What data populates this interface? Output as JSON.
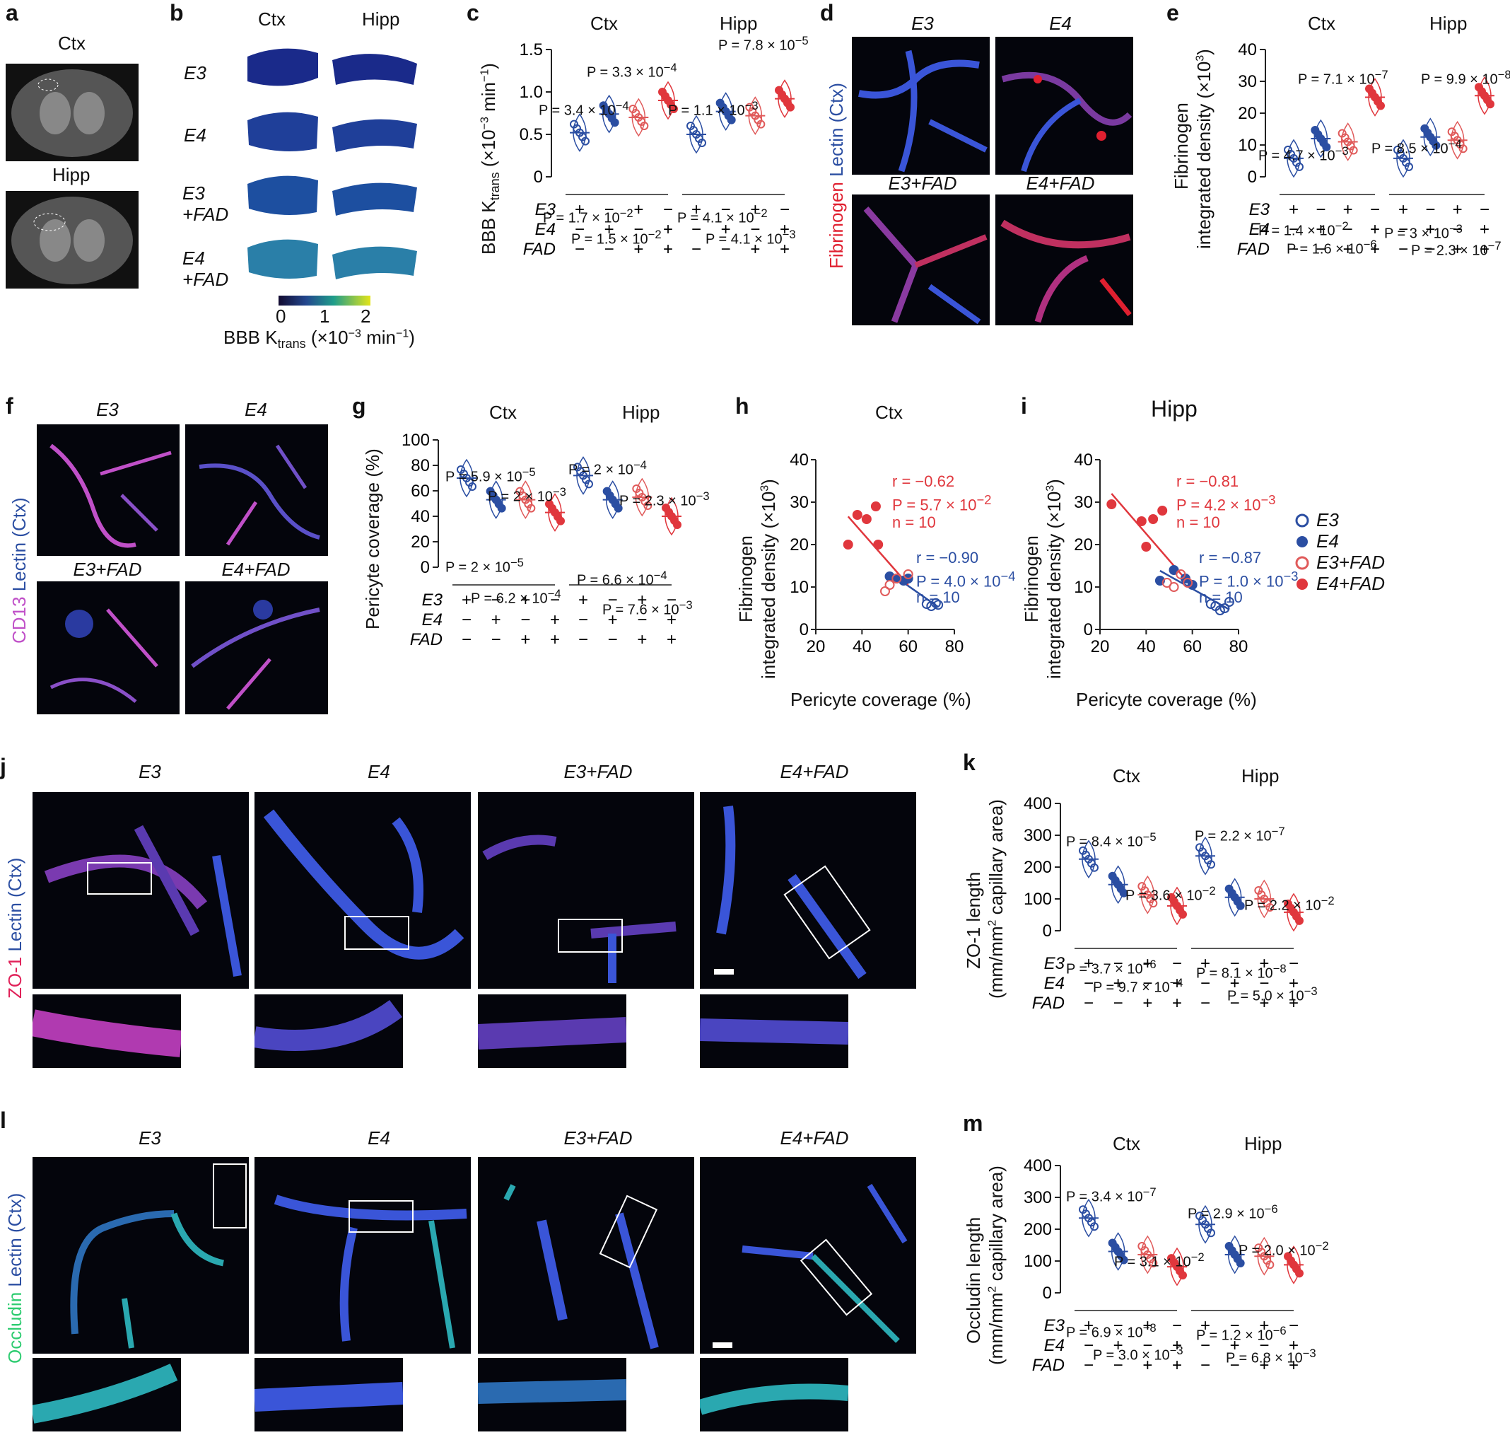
{
  "colors": {
    "e3": "#2b4ea2",
    "e4": "#2b4ea2",
    "e3fad": "#e05a5a",
    "e4fad": "#e0373d",
    "blue": "#2b4ea2",
    "red": "#e0373d",
    "lectin": "#3a55d8",
    "fibrinogen": "#e02030",
    "cd13": "#c050c8",
    "occludin": "#2ecc71",
    "zo1": "#e02058"
  },
  "panels": {
    "a": "a",
    "b": "b",
    "c": "c",
    "d": "d",
    "e": "e",
    "f": "f",
    "g": "g",
    "h": "h",
    "i": "i",
    "j": "j",
    "k": "k",
    "l": "l",
    "m": "m"
  },
  "regions": {
    "ctx": "Ctx",
    "hipp": "Hipp"
  },
  "genotypes": {
    "e3": "E3",
    "e4": "E4",
    "e3fad": "E3+FAD",
    "e4fad": "E4+FAD",
    "e3fad_b": "E3",
    "e3fad_b2": "+FAD",
    "e4fad_b": "E4",
    "e4fad_b2": "+FAD",
    "fad": "FAD"
  },
  "signs": [
    "+",
    "−",
    "+",
    "−",
    "−",
    "+",
    "−",
    "+",
    "−",
    "−",
    "+",
    "+"
  ],
  "colorbar": {
    "ticks": [
      "0",
      "1",
      "2"
    ],
    "label": "BBB K",
    "sub": "trans",
    "unit": " (×10",
    "unit_sup": "−3",
    "unit_end": " min",
    "unit_sup2": "−1",
    ")": ")"
  },
  "side_labels": {
    "d": {
      "a": "Fibrinogen",
      "b": " Lectin (Ctx)"
    },
    "f": {
      "a": "CD13",
      "b": " Lectin (Ctx)"
    },
    "j": {
      "a": "ZO-1",
      "b": " Lectin (Ctx)"
    },
    "l": {
      "a": "Occludin",
      "b": " Lectin (Ctx)"
    }
  },
  "axes": {
    "c": {
      "ylabel": "BBB K",
      "ysub": "trans",
      "yunit": " (×10",
      "ysup": "−3",
      "yunit2": " min",
      "ysup2": "−1",
      "yend": ")",
      "ticks": [
        "0",
        "0.5",
        "1.0",
        "1.5"
      ]
    },
    "e": {
      "ylabel1": "Fibrinogen",
      "ylabel2": "integrated density (×10",
      "ysup": "3",
      "yend": ")",
      "ticks": [
        "0",
        "10",
        "20",
        "30",
        "40"
      ]
    },
    "g": {
      "ylabel": "Pericyte coverage (%)",
      "ticks": [
        "0",
        "20",
        "40",
        "60",
        "80",
        "100"
      ]
    },
    "h": {
      "title": "Ctx",
      "ylabel1": "Fibrinogen",
      "ylabel2": "integrated density (×10",
      "ysup": "3",
      "yend": ")",
      "xlabel": "Pericyte coverage (%)",
      "yticks": [
        "0",
        "10",
        "20",
        "30",
        "40"
      ],
      "xticks": [
        "20",
        "40",
        "60",
        "80"
      ]
    },
    "i": {
      "title": "Hipp",
      "ylabel1": "Fibrinogen",
      "ylabel2": "integrated density (×10",
      "ysup": "3",
      "yend": ")",
      "xlabel": "Pericyte coverage (%)",
      "yticks": [
        "0",
        "10",
        "20",
        "30",
        "40"
      ],
      "xticks": [
        "20",
        "40",
        "60",
        "80"
      ]
    },
    "k": {
      "ylabel1": "ZO-1 length",
      "ylabel2": "(mm/mm",
      "ysup": "2",
      "yend": " capillary area)",
      "ticks": [
        "0",
        "100",
        "200",
        "300",
        "400"
      ]
    },
    "m": {
      "ylabel1": "Occludin length",
      "ylabel2": "(mm/mm",
      "ysup": "2",
      "yend": " capillary area)",
      "ticks": [
        "0",
        "100",
        "200",
        "300",
        "400"
      ]
    }
  },
  "stats": {
    "c": [
      "P = 3.3 × 10",
      "−4",
      "P = 3.4 × 10",
      "−4",
      "P = 1.7 × 10",
      "−2",
      "P = 1.5 × 10",
      "−2",
      "P = 7.8 × 10",
      "−5",
      "P = 1.1 × 10",
      "−3",
      "P = 4.1 × 10",
      "−2",
      "P = 4.1 × 10",
      "−3"
    ],
    "e": [
      "P = 7.1 × 10",
      "−7",
      "P = 4.7 × 10",
      "−3",
      "P = 1.4 × 10",
      "−2",
      "P = 1.6 × 10",
      "−6",
      "P = 9.9 × 10",
      "−8",
      "P = 8.5 × 10",
      "−4",
      "P = 3 × 10",
      "−3",
      "P = 2.3 × 10",
      "−7"
    ],
    "g": [
      "P = 5.9 × 10",
      "−5",
      "P = 2 × 10",
      "−3",
      "P = 2 × 10",
      "−5",
      "P = 6.2 × 10",
      "−4",
      "P = 2 × 10",
      "−4",
      "P = 2.3 × 10",
      "−3",
      "P = 6.6 × 10",
      "−4",
      "P = 7.6 × 10",
      "−3"
    ],
    "k": [
      "P = 8.4 × 10",
      "−5",
      "P = 3.6 × 10",
      "−2",
      "P = 3.7 × 10",
      "−6",
      "P = 9.7 × 10",
      "−4",
      "P = 2.2 × 10",
      "−7",
      "P = 2.2 × 10",
      "−2",
      "P = 8.1 × 10",
      "−8",
      "P = 5.0 × 10",
      "−3"
    ],
    "m": [
      "P = 3.4 × 10",
      "−7",
      "P = 3.1 × 10",
      "−2",
      "P = 6.9 × 10",
      "−8",
      "P = 3.0 × 10",
      "−3",
      "P = 2.9 × 10",
      "−6",
      "P = 2.0 × 10",
      "−2",
      "P = 1.2 × 10",
      "−6",
      "P = 6.8 × 10",
      "−3"
    ]
  },
  "corr": {
    "h": {
      "red_r": "r = −0.62",
      "red_p": "P = 5.7 × 10",
      "red_p_sup": "−2",
      "red_n": "n = 10",
      "blue_r": "r = −0.90",
      "blue_p": "P = 4.0 × 10",
      "blue_p_sup": "−4",
      "blue_n": "n = 10"
    },
    "i": {
      "red_r": "r = −0.81",
      "red_p": "P = 4.2 × 10",
      "red_p_sup": "−3",
      "red_n": "n = 10",
      "blue_r": "r = −0.87",
      "blue_p": "P = 1.0 × 10",
      "blue_p_sup": "−3",
      "blue_n": "n = 10"
    }
  },
  "legend": [
    "E3",
    "E4",
    "E3+FAD",
    "E4+FAD"
  ],
  "chart_data": [
    {
      "panel": "c",
      "type": "scatter",
      "groups": [
        "E3",
        "E4",
        "E3+FAD",
        "E4+FAD"
      ],
      "series": [
        {
          "name": "Ctx",
          "values": [
            0.52,
            0.74,
            0.7,
            0.9
          ]
        },
        {
          "name": "Hipp",
          "values": [
            0.5,
            0.77,
            0.72,
            0.92
          ]
        }
      ],
      "ylim": [
        0,
        1.5
      ]
    },
    {
      "panel": "e",
      "type": "scatter",
      "groups": [
        "E3",
        "E4",
        "E3+FAD",
        "E4+FAD"
      ],
      "series": [
        {
          "name": "Ctx",
          "values": [
            5.8,
            12,
            11,
            25
          ]
        },
        {
          "name": "Hipp",
          "values": [
            5.8,
            12.5,
            11.5,
            25.5
          ]
        }
      ],
      "ylim": [
        0,
        40
      ]
    },
    {
      "panel": "g",
      "type": "scatter",
      "groups": [
        "E3",
        "E4",
        "E3+FAD",
        "E4+FAD"
      ],
      "series": [
        {
          "name": "Ctx",
          "values": [
            70,
            53,
            53,
            43
          ]
        },
        {
          "name": "Hipp",
          "values": [
            72,
            53,
            55,
            40
          ]
        }
      ],
      "ylim": [
        0,
        100
      ]
    },
    {
      "panel": "h",
      "type": "scatter",
      "xlim": [
        20,
        80
      ],
      "ylim": [
        0,
        40
      ],
      "series": [
        {
          "name": "E3",
          "points": [
            [
              68,
              6
            ],
            [
              70,
              5.5
            ],
            [
              72,
              6.2
            ],
            [
              73,
              5.8
            ]
          ]
        },
        {
          "name": "E4",
          "points": [
            [
              52,
              12.5
            ],
            [
              55,
              12
            ],
            [
              58,
              11.5
            ],
            [
              60,
              12
            ]
          ]
        },
        {
          "name": "E3+FAD",
          "points": [
            [
              50,
              9
            ],
            [
              52,
              10.5
            ],
            [
              55,
              12
            ],
            [
              60,
              13
            ]
          ]
        },
        {
          "name": "E4+FAD",
          "points": [
            [
              34,
              20
            ],
            [
              38,
              27
            ],
            [
              42,
              26
            ],
            [
              46,
              29
            ],
            [
              47,
              20
            ]
          ]
        }
      ]
    },
    {
      "panel": "i",
      "type": "scatter",
      "xlim": [
        20,
        80
      ],
      "ylim": [
        0,
        40
      ],
      "series": [
        {
          "name": "E3",
          "points": [
            [
              68,
              6
            ],
            [
              70,
              5.5
            ],
            [
              72,
              4.5
            ],
            [
              74,
              5
            ],
            [
              76,
              6.5
            ]
          ]
        },
        {
          "name": "E4",
          "points": [
            [
              46,
              11.5
            ],
            [
              52,
              14
            ],
            [
              57,
              12
            ],
            [
              60,
              10.5
            ]
          ]
        },
        {
          "name": "E3+FAD",
          "points": [
            [
              49,
              11
            ],
            [
              52,
              10
            ],
            [
              55,
              13
            ],
            [
              58,
              11
            ]
          ]
        },
        {
          "name": "E4+FAD",
          "points": [
            [
              25,
              29.5
            ],
            [
              38,
              25.5
            ],
            [
              40,
              19.5
            ],
            [
              43,
              26
            ],
            [
              47,
              28
            ]
          ]
        }
      ]
    },
    {
      "panel": "k",
      "type": "scatter",
      "groups": [
        "E3",
        "E4",
        "E3+FAD",
        "E4+FAD"
      ],
      "series": [
        {
          "name": "Ctx",
          "values": [
            225,
            145,
            113,
            78
          ]
        },
        {
          "name": "Hipp",
          "values": [
            235,
            105,
            100,
            58
          ]
        }
      ],
      "ylim": [
        0,
        400
      ]
    },
    {
      "panel": "m",
      "type": "scatter",
      "groups": [
        "E3",
        "E4",
        "E3+FAD",
        "E4+FAD"
      ],
      "series": [
        {
          "name": "Ctx",
          "values": [
            235,
            130,
            120,
            82
          ]
        },
        {
          "name": "Hipp",
          "values": [
            215,
            120,
            115,
            88
          ]
        }
      ],
      "ylim": [
        0,
        400
      ]
    }
  ]
}
